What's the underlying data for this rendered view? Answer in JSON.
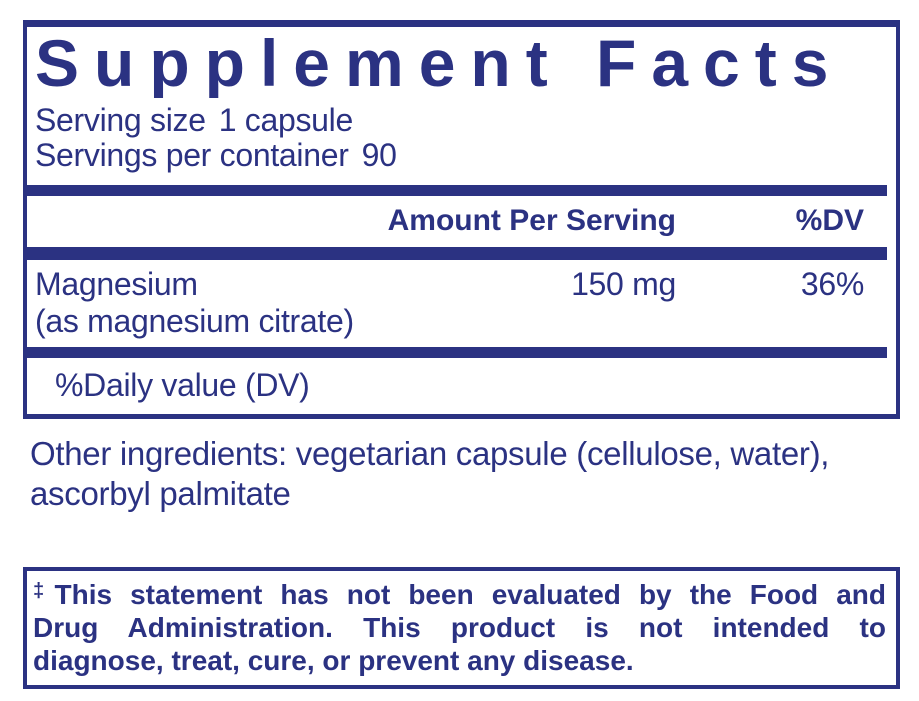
{
  "colors": {
    "navy": "#2B3282",
    "page_background": "#FFFFFF"
  },
  "supplement_facts": {
    "title": "Supplement Facts",
    "serving_size": {
      "label": "Serving size",
      "value": "1 capsule"
    },
    "servings_per_container": {
      "label": "Servings per container",
      "value": "90"
    },
    "columns": {
      "amount_header": "Amount Per Serving",
      "dv_header": "%DV"
    },
    "nutrients": [
      {
        "name": "Magnesium",
        "source": "(as magnesium citrate)",
        "amount": "150 mg",
        "daily_value": "36%"
      }
    ],
    "footnote": "%Daily value (DV)"
  },
  "other_ingredients": {
    "lines": [
      "Other ingredients: vegetarian capsule (cellulose, water),",
      "ascorbyl palmitate"
    ]
  },
  "fda_disclaimer": {
    "dagger": "‡",
    "lines": [
      "This statement has not been evaluated by the Food and",
      "Drug Administration. This product is not intended to",
      "diagnose, treat, cure, or prevent any disease."
    ]
  }
}
